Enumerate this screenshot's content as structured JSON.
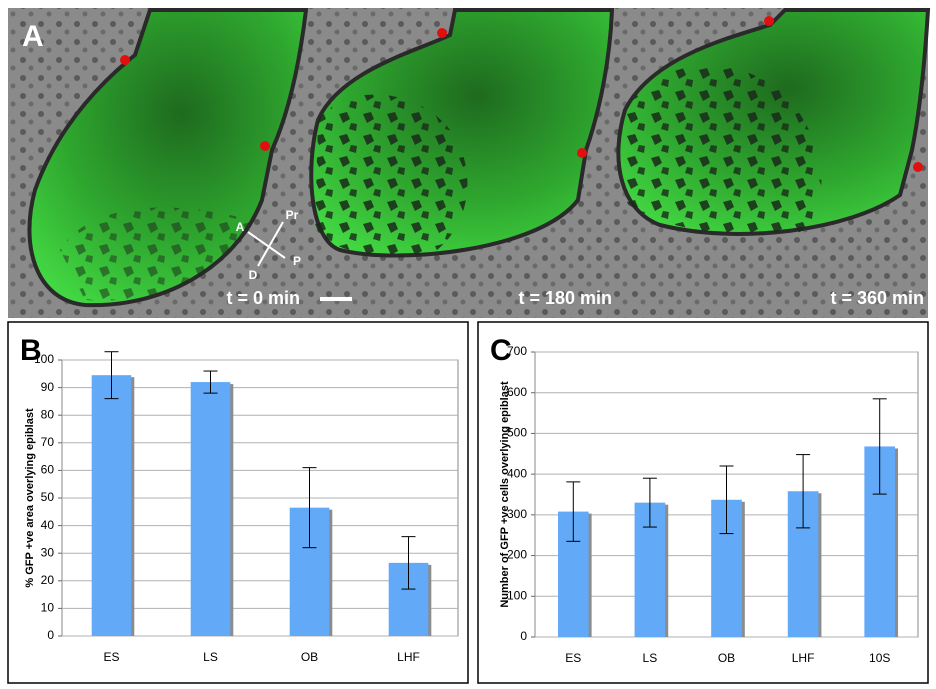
{
  "panel_a": {
    "label": "A",
    "times": [
      "t = 0 min",
      "t = 180 min",
      "t = 360 min"
    ],
    "orientation": [
      "Pr",
      "A",
      "P",
      "D"
    ]
  },
  "chart_data": [
    {
      "type": "bar",
      "panel_label": "B",
      "y_label": "% GFP +ve area overlying epiblast",
      "categories": [
        "ES",
        "LS",
        "OB",
        "LHF"
      ],
      "values": [
        94.5,
        92,
        46.5,
        26.5
      ],
      "errors": [
        8.5,
        4,
        14.5,
        9.5
      ],
      "color": "#62a9f8",
      "ylim": [
        0,
        100
      ],
      "yticks": [
        0,
        10,
        20,
        30,
        40,
        50,
        60,
        70,
        80,
        90,
        100
      ],
      "grid": true
    },
    {
      "type": "bar",
      "panel_label": "C",
      "y_label": "Number of GFP +ve cells overlying epiblast",
      "categories": [
        "ES",
        "LS",
        "OB",
        "LHF",
        "10S"
      ],
      "values": [
        308,
        330,
        337,
        358,
        468
      ],
      "errors": [
        73,
        60,
        83,
        90,
        117
      ],
      "color": "#62a9f8",
      "ylim": [
        0,
        700
      ],
      "yticks": [
        0,
        100,
        200,
        300,
        400,
        500,
        600,
        700
      ],
      "grid": true
    }
  ]
}
